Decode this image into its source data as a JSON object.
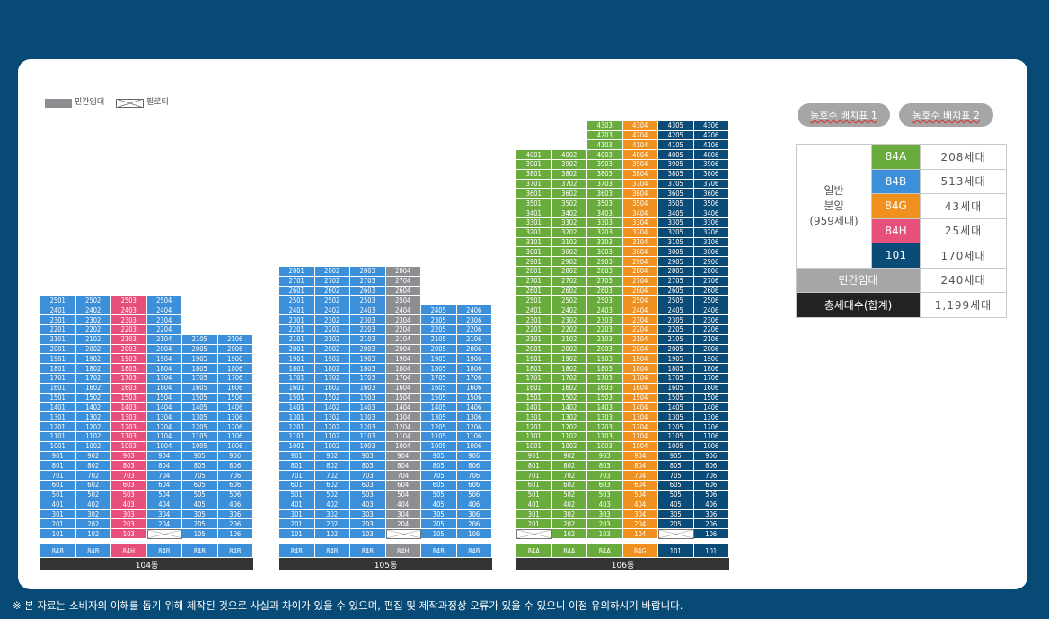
{
  "legend": {
    "private_label": "민간임대",
    "piloti_label": "필로티"
  },
  "buttons": {
    "layout1": "동호수 배치표 1",
    "layout2": "동호수 배치표 2"
  },
  "summary": {
    "group_label": "일반\n분양\n(959세대)",
    "rows": [
      {
        "type": "84A",
        "count": "208세대",
        "color": "#6aab3d"
      },
      {
        "type": "84B",
        "count": "513세대",
        "color": "#3c8fd9"
      },
      {
        "type": "84G",
        "count": "43세대",
        "color": "#f0901f"
      },
      {
        "type": "84H",
        "count": "25세대",
        "color": "#e8507c"
      },
      {
        "type": "101",
        "count": "170세대",
        "color": "#0a4b78"
      }
    ],
    "private": {
      "label": "민간임대",
      "count": "240세대",
      "color": "#a6a6a6"
    },
    "total": {
      "label": "총세대수(합계)",
      "count": "1,199세대",
      "color": "#222222"
    }
  },
  "buildings": [
    {
      "name": "104동",
      "types": [
        "84B",
        "84B",
        "84H",
        "84B",
        "84B",
        "84B"
      ],
      "columns": [
        {
          "suffix": "01",
          "cls": "t84B",
          "from": 1,
          "to": 25
        },
        {
          "suffix": "02",
          "cls": "t84B",
          "from": 1,
          "to": 25
        },
        {
          "suffix": "03",
          "cls": "t84H",
          "from": 1,
          "to": 25
        },
        {
          "suffix": "04",
          "cls": "t84B",
          "from": 1,
          "to": 25
        },
        {
          "suffix": "05",
          "cls": "t84B",
          "from": 1,
          "to": 21
        },
        {
          "suffix": "06",
          "cls": "t84B",
          "from": 1,
          "to": 21
        }
      ],
      "piloti": [
        "104"
      ]
    },
    {
      "name": "105동",
      "types": [
        "84B",
        "84B",
        "84B",
        "84H",
        "84B",
        "84B"
      ],
      "columns": [
        {
          "suffix": "01",
          "cls": "t84B",
          "from": 1,
          "to": 28
        },
        {
          "suffix": "02",
          "cls": "t84B",
          "from": 1,
          "to": 28
        },
        {
          "suffix": "03",
          "cls": "t84B",
          "from": 1,
          "to": 28
        },
        {
          "suffix": "04",
          "cls": "priv",
          "from": 1,
          "to": 28
        },
        {
          "suffix": "05",
          "cls": "t84B",
          "from": 1,
          "to": 24
        },
        {
          "suffix": "06",
          "cls": "t84B",
          "from": 1,
          "to": 24
        }
      ],
      "piloti": [
        "104"
      ]
    },
    {
      "name": "106동",
      "types": [
        "84A",
        "84A",
        "84A",
        "84G",
        "101",
        "101"
      ],
      "columns": [
        {
          "suffix": "01",
          "cls": "t84A",
          "from": 1,
          "to": 40
        },
        {
          "suffix": "02",
          "cls": "t84A",
          "from": 1,
          "to": 40
        },
        {
          "suffix": "03",
          "cls": "t84A",
          "from": 1,
          "to": 43
        },
        {
          "suffix": "04",
          "cls": "t84G",
          "from": 1,
          "to": 43
        },
        {
          "suffix": "05",
          "cls": "t101",
          "from": 1,
          "to": 43
        },
        {
          "suffix": "06",
          "cls": "t101",
          "from": 1,
          "to": 43
        }
      ],
      "piloti": [
        "101",
        "105"
      ]
    }
  ],
  "footer": "※ 본 자료는 소비자의 이해를 돕기 위해 제작된 것으로 사실과 차이가 있을 수 있으며, 편집 및 제작과정상 오류가 있을 수 있으니 이점 유의하시기 바랍니다."
}
